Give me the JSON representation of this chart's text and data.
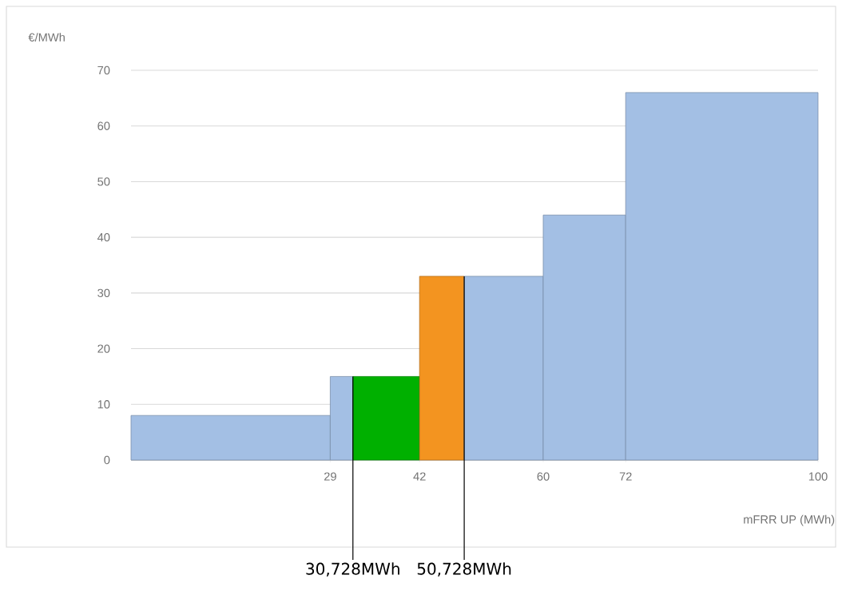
{
  "chart_data": {
    "type": "histogram",
    "xlabel": "mFRR UP (MWh)",
    "ylabel": "€/MWh",
    "bins": [
      0,
      29,
      32.3,
      42,
      48.5,
      60,
      72,
      100
    ],
    "values": [
      8,
      15,
      15,
      33,
      33,
      44,
      66
    ],
    "colors": [
      "#a3bfe4",
      "#a3bfe4",
      "#00b000",
      "#f39420",
      "#a3bfe4",
      "#a3bfe4",
      "#a3bfe4"
    ],
    "xlim": [
      0,
      100
    ],
    "xticks": [
      29,
      42,
      60,
      72,
      100
    ],
    "ylim": [
      0,
      70
    ],
    "yticks": [
      0,
      10,
      20,
      30,
      40,
      50,
      60,
      70
    ],
    "grid": "y",
    "annotations": [
      {
        "text": "30,728MWh",
        "x": 32.3,
        "y": 15
      },
      {
        "text": "50,728MWh",
        "x": 48.5,
        "y": 33
      }
    ]
  }
}
